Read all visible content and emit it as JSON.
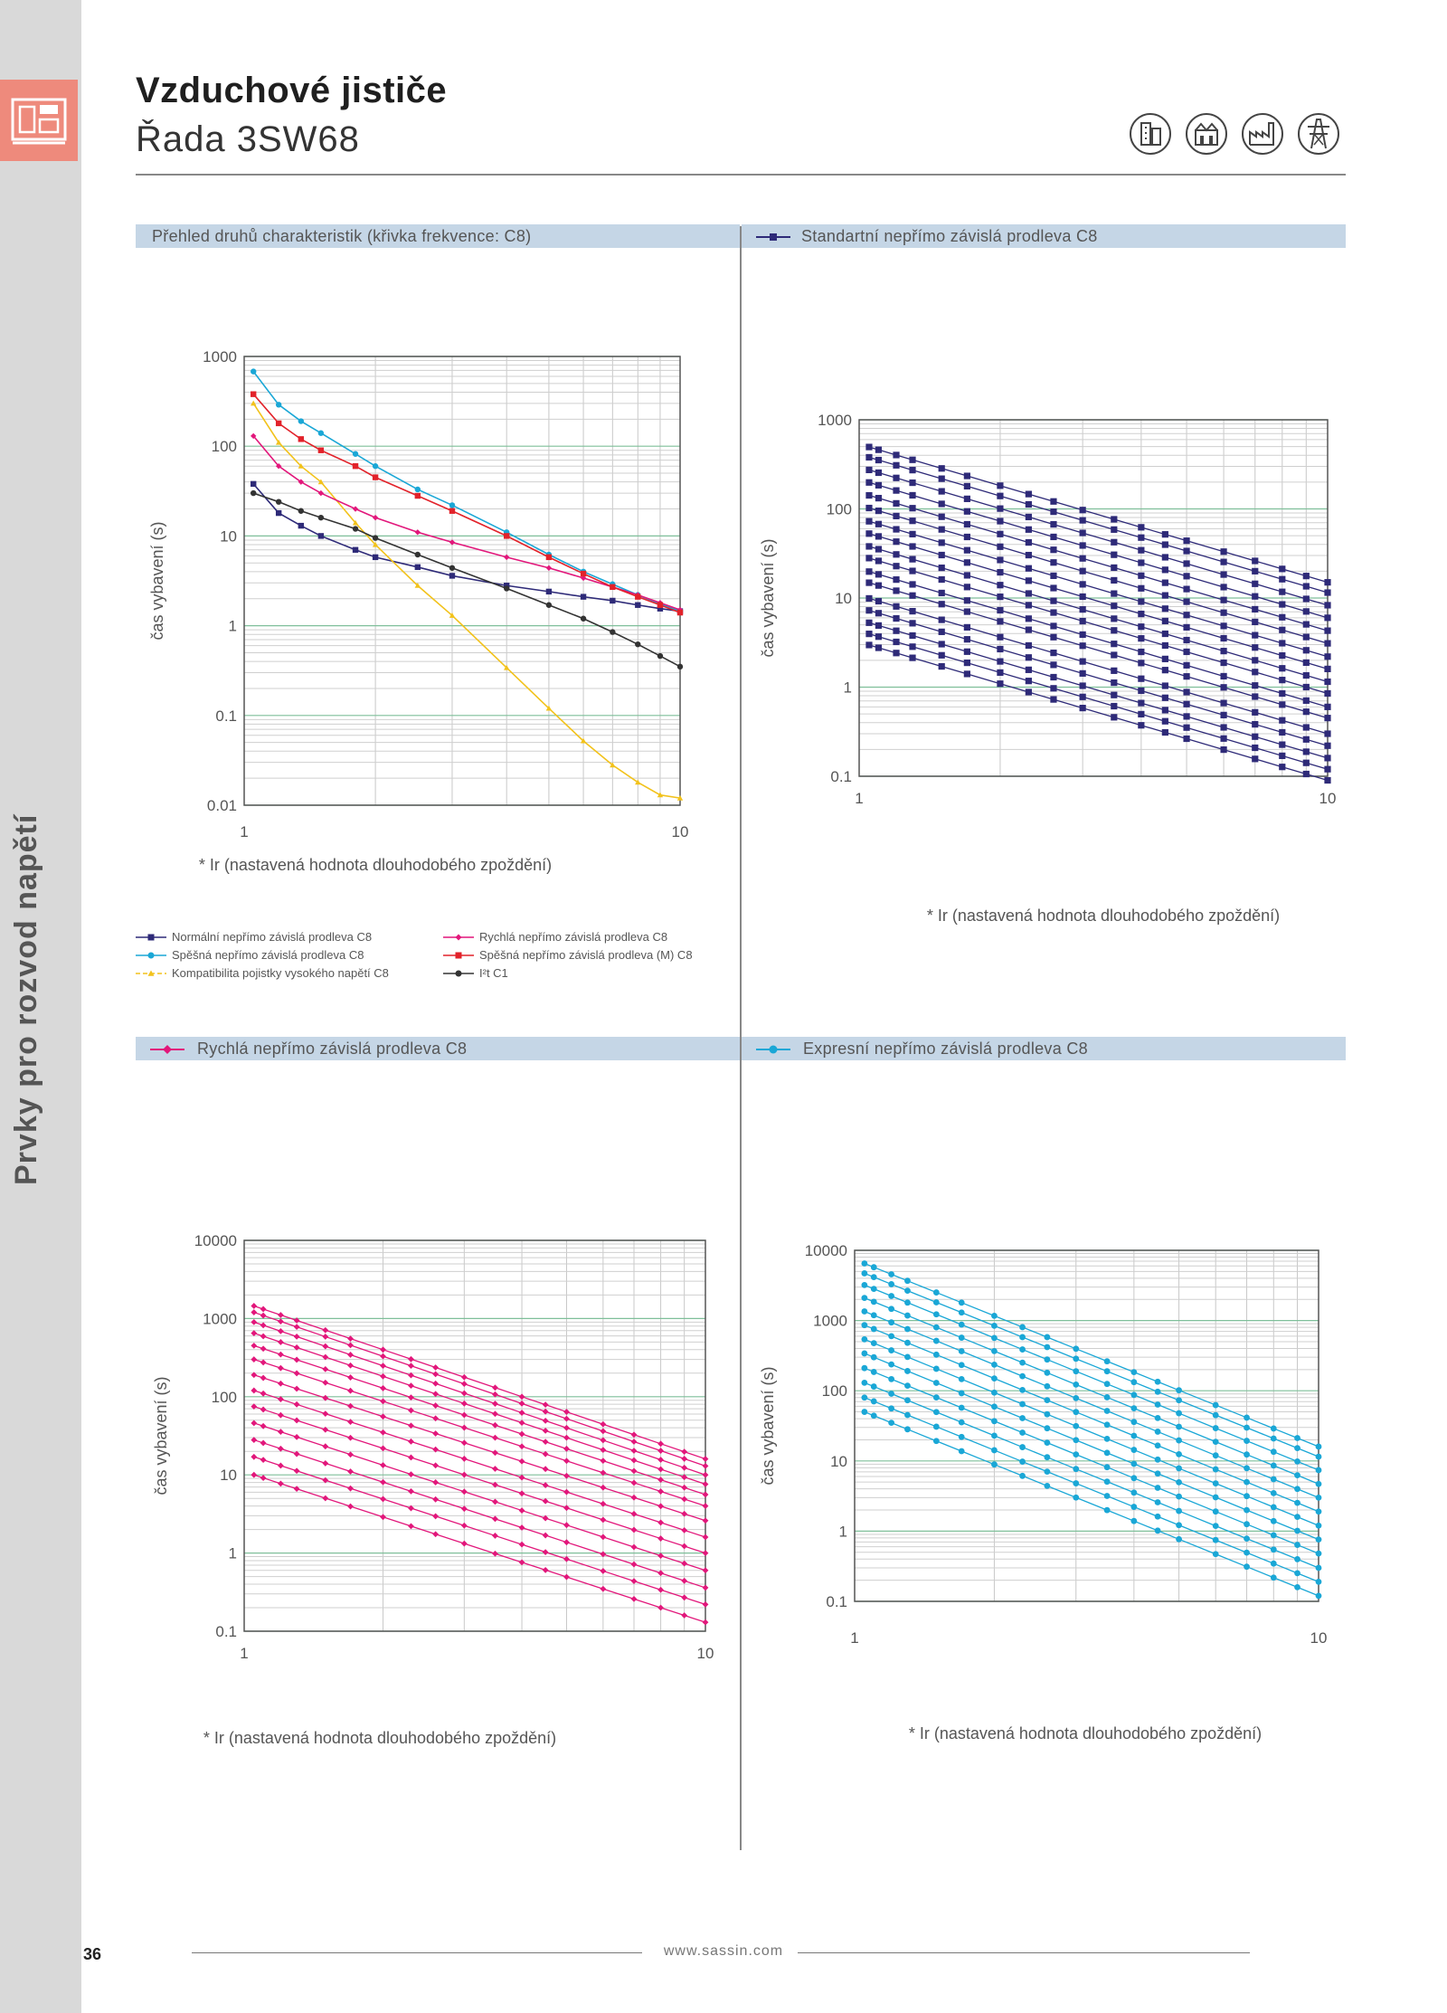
{
  "header": {
    "title": "Vzduchové jističe",
    "subtitle": "Řada 3SW68"
  },
  "sidebar": {
    "section_title": "Prvky pro rozvod napětí",
    "page_number": "36"
  },
  "icons": [
    "apartment-building-icon",
    "factory-building-icon",
    "industrial-plant-icon",
    "power-pylon-icon"
  ],
  "footer": {
    "url": "www.sassin.com"
  },
  "colors": {
    "navy": "#2e2a78",
    "cyan": "#1aa7d6",
    "yellow": "#f2c21b",
    "magenta": "#e2177b",
    "red": "#e2222a",
    "black": "#333333",
    "band": "#c5d6e6"
  },
  "chart_data": [
    {
      "id": "overview",
      "type": "line",
      "section_title": "Přehled druhů charakteristik (křivka frekvence: C8)",
      "xlabel": "* Ir (nastavená hodnota dlouhodobého zpoždění)",
      "ylabel": "čas vybavení (s)",
      "xscale": "log",
      "yscale": "log",
      "xlim": [
        1,
        10
      ],
      "ylim": [
        0.01,
        1000
      ],
      "xticks": [
        "1",
        "10"
      ],
      "yticks": [
        "1000",
        "100",
        "10",
        "1",
        "0.1",
        "0.01"
      ],
      "series": [
        {
          "name": "Normální nepřímo závislá prodleva C8",
          "color": "#2e2a78",
          "marker": "square",
          "x": [
            1.05,
            1.2,
            1.35,
            1.5,
            1.8,
            2,
            2.5,
            3,
            4,
            5,
            6,
            7,
            8,
            9,
            10
          ],
          "y": [
            38,
            18,
            13,
            10,
            7,
            5.8,
            4.5,
            3.6,
            2.8,
            2.4,
            2.1,
            1.9,
            1.7,
            1.55,
            1.45
          ]
        },
        {
          "name": "Spěšná nepřímo závislá prodleva C8",
          "color": "#1aa7d6",
          "marker": "circle",
          "x": [
            1.05,
            1.2,
            1.35,
            1.5,
            1.8,
            2,
            2.5,
            3,
            4,
            5,
            6,
            7,
            8,
            9,
            10
          ],
          "y": [
            680,
            290,
            190,
            140,
            82,
            60,
            33,
            22,
            11,
            6.2,
            4,
            2.9,
            2.2,
            1.75,
            1.45
          ]
        },
        {
          "name": "Kompatibilita pojistky vysokého napětí C8",
          "color": "#f2c21b",
          "marker": "triangle",
          "x": [
            1.05,
            1.2,
            1.35,
            1.5,
            1.8,
            2,
            2.5,
            3,
            4,
            5,
            6,
            7,
            8,
            9,
            10
          ],
          "y": [
            300,
            110,
            60,
            40,
            14,
            8,
            2.8,
            1.3,
            0.34,
            0.12,
            0.052,
            0.028,
            0.018,
            0.013,
            0.012
          ]
        },
        {
          "name": "Rychlá nepřímo závislá prodleva C8",
          "color": "#e2177b",
          "marker": "diamond",
          "x": [
            1.05,
            1.2,
            1.35,
            1.5,
            1.8,
            2,
            2.5,
            3,
            4,
            5,
            6,
            7,
            8,
            9,
            10
          ],
          "y": [
            130,
            60,
            40,
            30,
            20,
            16,
            11,
            8.5,
            5.8,
            4.4,
            3.4,
            2.7,
            2.2,
            1.8,
            1.5
          ]
        },
        {
          "name": "Spěšná nepřímo závislá prodleva (M) C8",
          "color": "#e2222a",
          "marker": "square",
          "x": [
            1.05,
            1.2,
            1.35,
            1.5,
            1.8,
            2,
            2.5,
            3,
            4,
            5,
            6,
            7,
            8,
            9,
            10
          ],
          "y": [
            380,
            180,
            120,
            90,
            60,
            45,
            28,
            19,
            10,
            5.8,
            3.8,
            2.7,
            2.1,
            1.7,
            1.4
          ]
        },
        {
          "name": "I²t C1",
          "color": "#333333",
          "marker": "circle",
          "x": [
            1.05,
            1.2,
            1.35,
            1.5,
            1.8,
            2,
            2.5,
            3,
            4,
            5,
            6,
            7,
            8,
            9,
            10
          ],
          "y": [
            30,
            24,
            19,
            16,
            12,
            9.5,
            6.2,
            4.4,
            2.6,
            1.7,
            1.2,
            0.85,
            0.62,
            0.46,
            0.35
          ]
        }
      ]
    },
    {
      "id": "standard",
      "type": "line",
      "section_title": "Standartní nepřímo závislá prodleva C8",
      "xlabel": "* Ir (nastavená hodnota dlouhodobého zpoždění)",
      "ylabel": "čas vybavení (s)",
      "xscale": "log",
      "yscale": "log",
      "xlim": [
        1,
        10
      ],
      "ylim": [
        0.1,
        1000
      ],
      "xticks": [
        "1",
        "10"
      ],
      "yticks": [
        "1000",
        "100",
        "10",
        "1",
        "0.1"
      ],
      "color": "#2e2a78",
      "marker": "square",
      "family": {
        "at_x": [
          1.05,
          10
        ],
        "end_values_at_10": [
          0.09,
          0.12,
          0.16,
          0.22,
          0.3,
          0.45,
          0.6,
          0.85,
          1.15,
          1.6,
          2.2,
          3.1,
          4.3,
          6,
          8.3,
          11.5,
          15
        ]
      }
    },
    {
      "id": "rapid",
      "type": "line",
      "section_title": "Rychlá nepřímo závislá prodleva C8",
      "xlabel": "* Ir (nastavená hodnota dlouhodobého zpoždění)",
      "ylabel": "čas vybavení (s)",
      "xscale": "log",
      "yscale": "log",
      "xlim": [
        1,
        10
      ],
      "ylim": [
        0.1,
        10000
      ],
      "xticks": [
        "1",
        "10"
      ],
      "yticks": [
        "10000",
        "1000",
        "100",
        "10",
        "1",
        "0.1"
      ],
      "color": "#e2177b",
      "marker": "diamond",
      "family": {
        "at_x": [
          1.05,
          10
        ],
        "start_values": [
          10,
          17,
          28,
          46,
          75,
          120,
          190,
          300,
          450,
          650,
          900,
          1200,
          1450
        ],
        "end_values_at_10": [
          0.13,
          0.22,
          0.36,
          0.6,
          1,
          1.6,
          2.6,
          4,
          5.6,
          7.6,
          10,
          13,
          16
        ]
      }
    },
    {
      "id": "express",
      "type": "line",
      "section_title": "Expresní nepřímo závislá prodleva C8",
      "xlabel": "* Ir (nastavená hodnota dlouhodobého zpoždění)",
      "ylabel": "čas vybavení (s)",
      "xscale": "log",
      "yscale": "log",
      "xlim": [
        1,
        10
      ],
      "ylim": [
        0.1,
        10000
      ],
      "xticks": [
        "1",
        "10"
      ],
      "yticks": [
        "10000",
        "1000",
        "100",
        "10",
        "1",
        "0.1"
      ],
      "color": "#1aa7d6",
      "marker": "circle",
      "family": {
        "at_x": [
          1.05,
          10
        ],
        "start_values": [
          50,
          80,
          130,
          210,
          340,
          540,
          860,
          1350,
          2100,
          3200,
          4700,
          6500
        ],
        "end_values_at_10": [
          0.12,
          0.19,
          0.3,
          0.48,
          0.76,
          1.2,
          1.9,
          3,
          4.7,
          7.4,
          11.5,
          16
        ]
      }
    }
  ]
}
